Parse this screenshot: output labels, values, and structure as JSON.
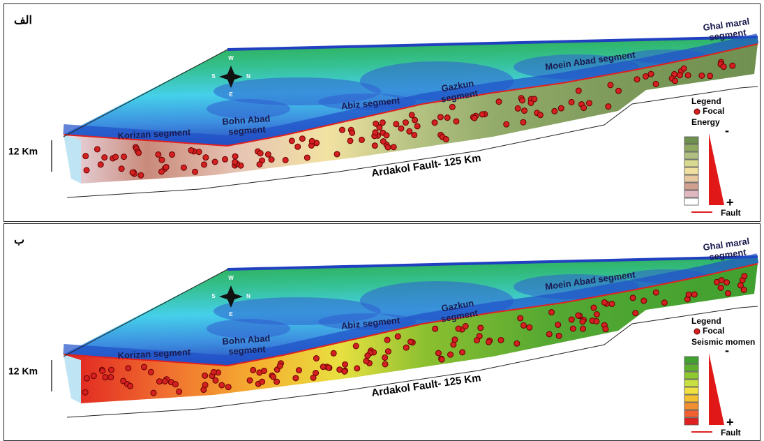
{
  "panels": [
    {
      "label": "الف",
      "segments": [
        [
          "Ghal maral",
          "segment"
        ],
        [
          "Moein Abad segment"
        ],
        [
          "Gazkun",
          "segment"
        ],
        [
          "Abiz segment"
        ],
        [
          "Bohn Abad",
          "segment"
        ],
        [
          "Korizan segment"
        ]
      ],
      "depth_label": "12 Km",
      "fault_label": "Ardakol Fault- 125 Km",
      "compass": [
        "W",
        "N",
        "S",
        "E"
      ],
      "legend": {
        "title": "Legend",
        "focal": "Focal",
        "scale_title": "Energy",
        "minus": "-",
        "plus": "+",
        "fault": "Fault"
      }
    },
    {
      "label": "ب",
      "segments": [
        [
          "Ghal maral",
          "segment"
        ],
        [
          "Moein Abad segment"
        ],
        [
          "Gazkun",
          "segment"
        ],
        [
          "Abiz segment"
        ],
        [
          "Bohn Abad",
          "segment"
        ],
        [
          "Korizan segment"
        ]
      ],
      "depth_label": "12 Km",
      "fault_label": "Ardakol Fault- 125 Km",
      "compass": [
        "W",
        "N",
        "S",
        "E"
      ],
      "legend": {
        "title": "Legend",
        "focal": "Focal",
        "scale_title": "Seismic momen",
        "minus": "-",
        "plus": "+",
        "fault": "Fault"
      }
    }
  ]
}
